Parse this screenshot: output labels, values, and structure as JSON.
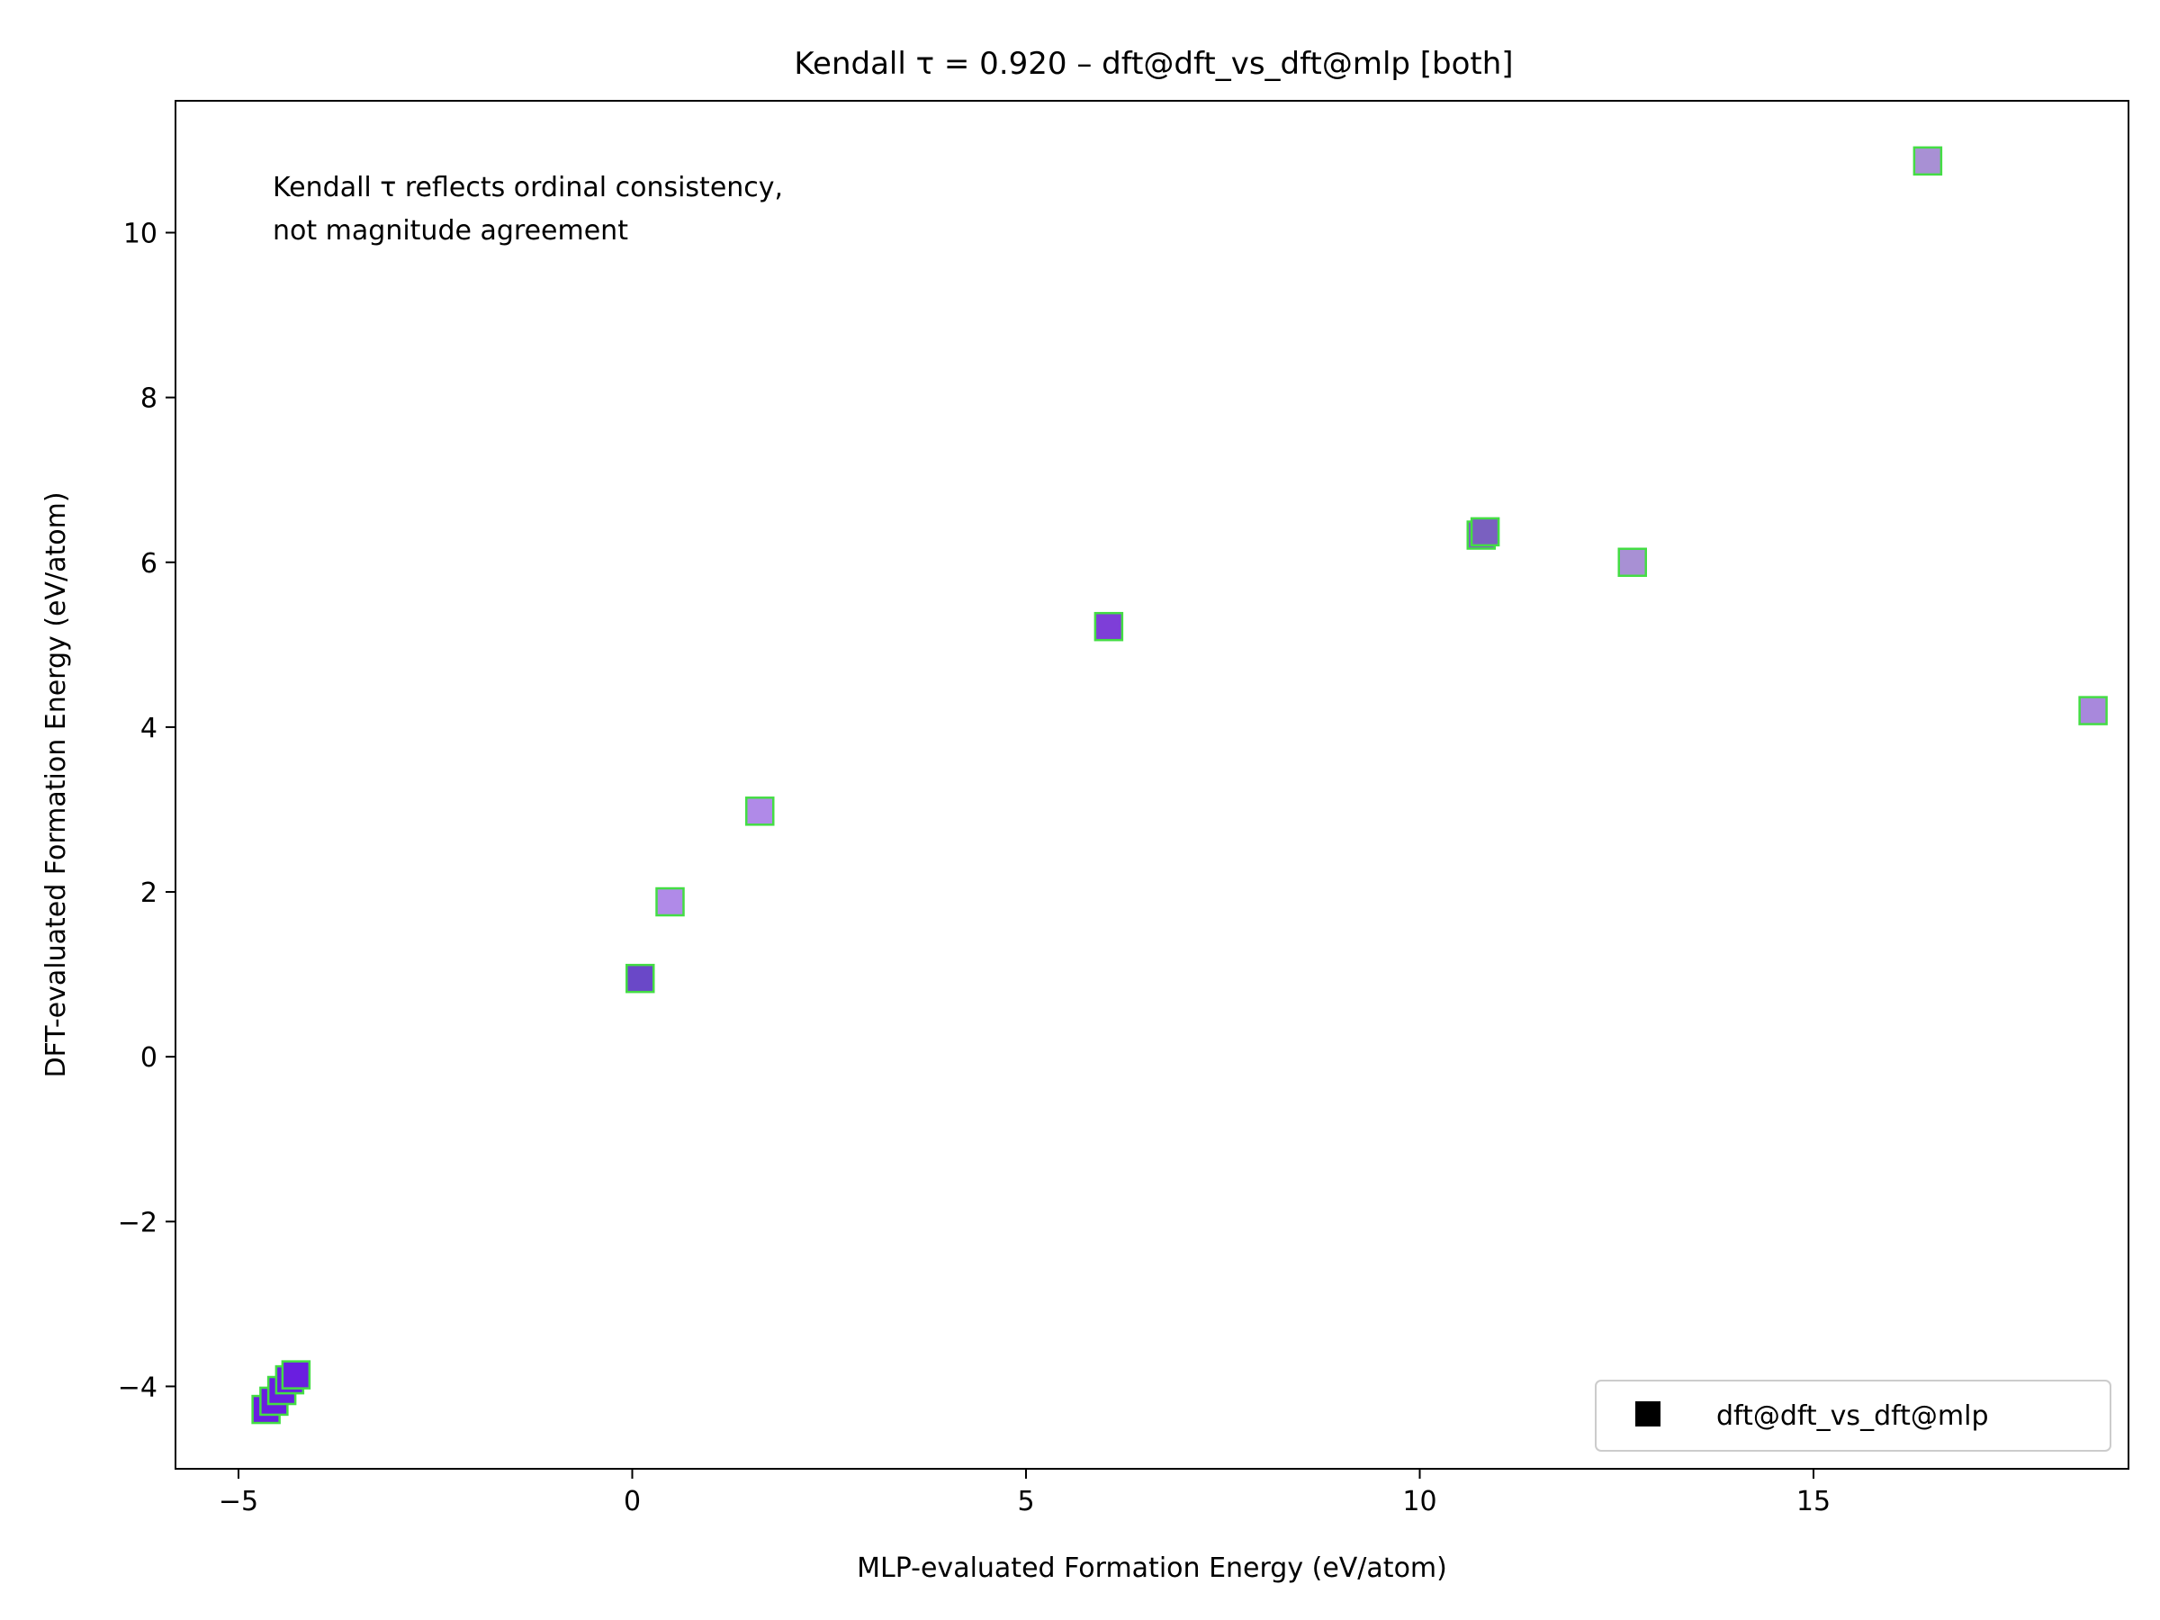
{
  "chart_data": {
    "type": "scatter",
    "title": "Kendall τ = 0.920 – dft@dft_vs_dft@mlp [both]",
    "xlabel": "MLP-evaluated Formation Energy (eV/atom)",
    "ylabel": "DFT-evaluated Formation Energy (eV/atom)",
    "xlim": [
      -5.8,
      19.0
    ],
    "ylim": [
      -5.0,
      11.6
    ],
    "xticks": [
      -5,
      0,
      5,
      10,
      15
    ],
    "xtick_labels": [
      "−5",
      "0",
      "5",
      "10",
      "15"
    ],
    "yticks": [
      -4,
      -2,
      0,
      2,
      4,
      6,
      8,
      10
    ],
    "ytick_labels": [
      "−4",
      "−2",
      "0",
      "2",
      "4",
      "6",
      "8",
      "10"
    ],
    "grid": false,
    "legend_position": "lower-right",
    "annotation_lines": [
      "Kendall τ reflects ordinal consistency,",
      "not magnitude agreement"
    ],
    "marker": "square",
    "marker_edge_color": "#44dd44",
    "series": [
      {
        "name": "dft@dft_vs_dft@mlp",
        "legend_color": "#000000",
        "points": [
          {
            "x": -4.65,
            "y": -4.28,
            "color": "#6a1ee0"
          },
          {
            "x": -4.55,
            "y": -4.18,
            "color": "#6a1ee0"
          },
          {
            "x": -4.45,
            "y": -4.05,
            "color": "#6a1ee0"
          },
          {
            "x": -4.35,
            "y": -3.92,
            "color": "#6a1ee0"
          },
          {
            "x": -4.27,
            "y": -3.86,
            "color": "#6a1ee0"
          },
          {
            "x": 0.1,
            "y": 0.95,
            "color": "#6a48c8"
          },
          {
            "x": 0.48,
            "y": 1.88,
            "color": "#b08ae8"
          },
          {
            "x": 1.62,
            "y": 2.98,
            "color": "#b08ae8"
          },
          {
            "x": 6.05,
            "y": 5.22,
            "color": "#7e3ed8"
          },
          {
            "x": 10.78,
            "y": 6.33,
            "color": "#7a60c0"
          },
          {
            "x": 10.83,
            "y": 6.37,
            "color": "#7a60c0"
          },
          {
            "x": 12.7,
            "y": 6.0,
            "color": "#a890d4"
          },
          {
            "x": 16.45,
            "y": 10.87,
            "color": "#a890d4"
          },
          {
            "x": 18.55,
            "y": 4.2,
            "color": "#a888dc"
          }
        ]
      }
    ]
  }
}
